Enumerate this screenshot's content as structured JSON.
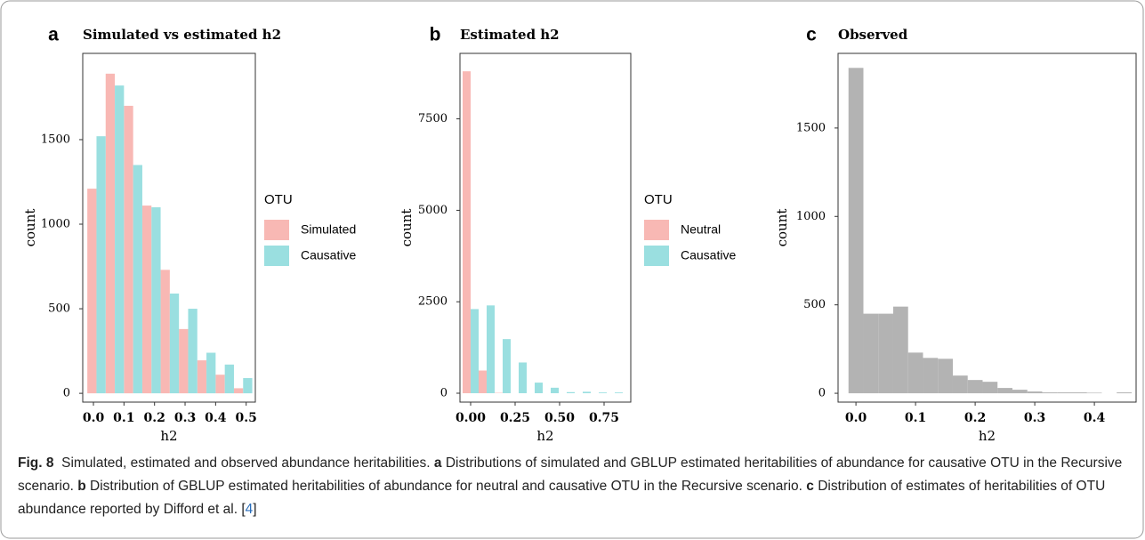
{
  "chart_data": [
    {
      "type": "histogram",
      "label": "a",
      "title": "Simulated vs estimated h2",
      "xlabel": "h2",
      "ylabel": "count",
      "legend_title": "OTU",
      "bins": [
        -0.02,
        0.04,
        0.1,
        0.16,
        0.22,
        0.28,
        0.34,
        0.4,
        0.46,
        0.52
      ],
      "series": [
        {
          "name": "Simulated",
          "color": "#f8b8b4",
          "values": [
            1210,
            1890,
            1700,
            1110,
            730,
            380,
            195,
            110,
            30
          ]
        },
        {
          "name": "Causative",
          "color": "#9adfe0",
          "values": [
            1520,
            1820,
            1350,
            1100,
            590,
            500,
            240,
            170,
            90
          ]
        }
      ],
      "xlim": [
        -0.035,
        0.53
      ],
      "ylim": [
        -52,
        2010
      ],
      "xticks": [
        {
          "value": 0,
          "label": "0.0"
        },
        0.1,
        0.2,
        0.3,
        0.4,
        0.5
      ],
      "yticks": [
        0,
        500,
        1000,
        1500
      ]
    },
    {
      "type": "histogram",
      "label": "b",
      "title": "Estimated h2",
      "xlabel": "h2",
      "ylabel": "count",
      "legend_title": "OTU",
      "bins": [
        -0.045,
        0.045,
        0.135,
        0.225,
        0.315,
        0.405,
        0.495,
        0.585,
        0.675,
        0.765,
        0.855
      ],
      "series": [
        {
          "name": "Neutral",
          "color": "#f8b8b4",
          "values": [
            8800,
            620,
            10,
            0,
            0,
            0,
            0,
            0,
            0,
            0
          ]
        },
        {
          "name": "Causative",
          "color": "#9adfe0",
          "values": [
            2300,
            2400,
            1480,
            840,
            290,
            150,
            30,
            40,
            20,
            20
          ]
        }
      ],
      "xlim": [
        -0.06,
        0.9
      ],
      "ylim": [
        -243,
        9290
      ],
      "xticks": [
        {
          "value": 0,
          "label": "0.00"
        },
        0.25,
        {
          "value": 0.5,
          "label": "0.50"
        },
        0.75
      ],
      "yticks": [
        0,
        2500,
        5000,
        7500
      ]
    },
    {
      "type": "histogram",
      "label": "c",
      "title": "Observed",
      "xlabel": "h2",
      "ylabel": "count",
      "bins": [
        -0.0125,
        0.0125,
        0.0375,
        0.0625,
        0.0875,
        0.1125,
        0.1375,
        0.1625,
        0.1875,
        0.2125,
        0.2375,
        0.2625,
        0.2875,
        0.3125,
        0.3375,
        0.3625,
        0.3875,
        0.4125,
        0.4375,
        0.4625
      ],
      "series": [
        {
          "name": "Observed",
          "color": "#b3b3b3",
          "values": [
            1840,
            450,
            450,
            490,
            230,
            200,
            195,
            100,
            75,
            65,
            30,
            20,
            10,
            5,
            5,
            5,
            3,
            0,
            5
          ]
        }
      ],
      "xlim": [
        -0.03,
        0.47
      ],
      "ylim": [
        -50,
        1922
      ],
      "xticks": [
        {
          "value": 0,
          "label": "0.0"
        },
        0.1,
        0.2,
        0.3,
        0.4
      ],
      "yticks": [
        0,
        500,
        1000,
        1500
      ]
    }
  ],
  "caption": {
    "label": "Fig. 8",
    "title": "Simulated, estimated and observed abundance heritabilities.",
    "parts": [
      {
        "label": "a",
        "text": "Distributions of simulated and GBLUP estimated heritabilities of abundance for causative OTU in the Recursive scenario."
      },
      {
        "label": "b",
        "text": "Distribution of GBLUP estimated heritabilities of abundance for neutral and causative OTU in the Recursive scenario."
      },
      {
        "label": "c",
        "text": "Distribution of estimates of heritabilities of OTU abundance reported by Difford et al. ["
      }
    ],
    "ref": "4",
    "tail": "]"
  }
}
